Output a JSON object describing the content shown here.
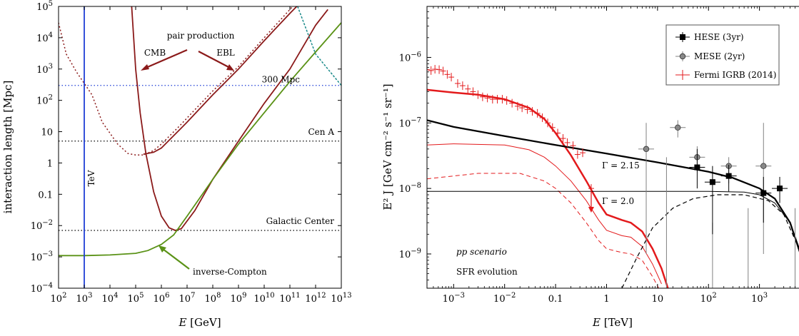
{
  "colors": {
    "pair": "#8b1a1a",
    "ic": "#5a9216",
    "tev": "#1f3fd6",
    "teal": "#1a8a8a",
    "fermi": "#e31a1c",
    "black": "#000000",
    "grey": "#808080"
  },
  "chart_data": [
    {
      "type": "line",
      "xlabel_sym": "E",
      "xlabel_unit": "[GeV]",
      "ylabel": "interaction length [Mpc]",
      "x_scale": "log",
      "y_scale": "log",
      "xlim": [
        100,
        10000000000000.0
      ],
      "ylim": [
        0.0001,
        100000
      ],
      "x_ticks": [
        {
          "v": 100,
          "m": "10",
          "e": "2"
        },
        {
          "v": 1000,
          "m": "10",
          "e": "3"
        },
        {
          "v": 10000,
          "m": "10",
          "e": "4"
        },
        {
          "v": 100000,
          "m": "10",
          "e": "5"
        },
        {
          "v": 1000000,
          "m": "10",
          "e": "6"
        },
        {
          "v": 10000000,
          "m": "10",
          "e": "7"
        },
        {
          "v": 100000000,
          "m": "10",
          "e": "8"
        },
        {
          "v": 1000000000,
          "m": "10",
          "e": "9"
        },
        {
          "v": 10000000000.0,
          "m": "10",
          "e": "10"
        },
        {
          "v": 100000000000.0,
          "m": "10",
          "e": "11"
        },
        {
          "v": 1000000000000.0,
          "m": "10",
          "e": "12"
        },
        {
          "v": 10000000000000.0,
          "m": "10",
          "e": "13"
        }
      ],
      "y_ticks": [
        {
          "v": 0.0001,
          "m": "10",
          "e": "−4"
        },
        {
          "v": 0.001,
          "m": "10",
          "e": "−3"
        },
        {
          "v": 0.01,
          "m": "10",
          "e": "−2"
        },
        {
          "v": 0.1,
          "m": "0.1",
          "e": ""
        },
        {
          "v": 1,
          "m": "1",
          "e": ""
        },
        {
          "v": 10,
          "m": "10",
          "e": ""
        },
        {
          "v": 100,
          "m": "10",
          "e": "2"
        },
        {
          "v": 1000,
          "m": "10",
          "e": "3"
        },
        {
          "v": 10000,
          "m": "10",
          "e": "4"
        },
        {
          "v": 100000,
          "m": "10",
          "e": "5"
        }
      ],
      "hlines": [
        {
          "label": "300 Mpc",
          "y": 300,
          "color": "#1f3fd6"
        },
        {
          "label": "Cen A",
          "y": 5,
          "color": "#000000"
        },
        {
          "label": "Galactic Center",
          "y": 0.007,
          "color": "#000000"
        }
      ],
      "vline": {
        "label": "TeV",
        "x": 1000
      },
      "annotations": {
        "pair": "pair production",
        "cmb": "CMB",
        "ebl": "EBL",
        "ic": "inverse-Compton"
      },
      "series": [
        {
          "key": "pair_cmb",
          "style": "solid",
          "color": "#8b1a1a",
          "points": [
            [
              70000,
              100000
            ],
            [
              100000,
              1000
            ],
            [
              150000,
              40
            ],
            [
              250000,
              2
            ],
            [
              500000,
              0.12
            ],
            [
              1000000,
              0.02
            ],
            [
              2000000,
              0.0085
            ],
            [
              3500000,
              0.007
            ],
            [
              6000000,
              0.008
            ],
            [
              20000000,
              0.03
            ],
            [
              100000000,
              0.3
            ],
            [
              1000000000,
              5
            ],
            [
              10000000000.0,
              80
            ],
            [
              100000000000.0,
              1000
            ],
            [
              1000000000000.0,
              25000
            ],
            [
              3000000000000.0,
              80000
            ]
          ]
        },
        {
          "key": "pair_ebl",
          "style": "dotted",
          "color": "#8b1a1a",
          "points": [
            [
              100,
              30000
            ],
            [
              200,
              3000
            ],
            [
              500,
              800
            ],
            [
              1000,
              350
            ],
            [
              2000,
              150
            ],
            [
              5000,
              20
            ],
            [
              20000,
              4
            ],
            [
              50000,
              2
            ],
            [
              100000,
              1.8
            ],
            [
              200000,
              1.8
            ],
            [
              500000,
              2.5
            ],
            [
              1000000,
              4
            ],
            [
              5000000,
              15
            ],
            [
              20000000,
              50
            ],
            [
              100000000,
              200
            ],
            [
              1000000000,
              1200
            ],
            [
              10000000000.0,
              10000
            ],
            [
              100000000000.0,
              80000
            ],
            [
              200000000000.0,
              150000
            ]
          ]
        },
        {
          "key": "pair_ebl_full",
          "style": "solid",
          "color": "#8b1a1a",
          "points": [
            [
              200000,
              1.9
            ],
            [
              500000,
              2.2
            ],
            [
              1000000,
              3
            ],
            [
              10000000,
              20
            ],
            [
              100000000,
              150
            ],
            [
              1000000000,
              1000
            ],
            [
              10000000000.0,
              8000
            ],
            [
              100000000000.0,
              60000
            ],
            [
              300000000000.0,
              150000
            ]
          ]
        },
        {
          "key": "ic",
          "style": "solid",
          "color": "#5a9216",
          "points": [
            [
              100,
              0.0011
            ],
            [
              1000,
              0.0011
            ],
            [
              10000,
              0.00115
            ],
            [
              100000,
              0.0013
            ],
            [
              300000,
              0.0016
            ],
            [
              1000000,
              0.0025
            ],
            [
              3000000,
              0.005
            ],
            [
              10000000,
              0.02
            ],
            [
              100000000,
              0.3
            ],
            [
              1000000000,
              4
            ],
            [
              10000000000.0,
              40
            ],
            [
              100000000000.0,
              400
            ],
            [
              1000000000000.0,
              3500
            ],
            [
              10000000000000.0,
              30000
            ]
          ]
        },
        {
          "key": "teal_dashed",
          "style": "dashdot",
          "color": "#1a8a8a",
          "points": [
            [
              200000000000.0,
              100000
            ],
            [
              1000000000000.0,
              3000
            ],
            [
              10000000000000.0,
              300
            ]
          ]
        }
      ]
    },
    {
      "type": "scatter",
      "xlabel_sym": "E",
      "xlabel_unit": "[TeV]",
      "ylabel": "E² J [GeV cm⁻² s⁻¹ sr⁻¹]",
      "x_scale": "log",
      "y_scale": "log",
      "xlim": [
        0.0003,
        10000
      ],
      "ylim": [
        3e-10,
        6e-06
      ],
      "x_ticks": [
        {
          "v": 0.001,
          "m": "10",
          "e": "−3"
        },
        {
          "v": 0.01,
          "m": "10",
          "e": "−2"
        },
        {
          "v": 0.1,
          "m": "0.1",
          "e": ""
        },
        {
          "v": 1,
          "m": "1",
          "e": ""
        },
        {
          "v": 10,
          "m": "10",
          "e": ""
        },
        {
          "v": 100,
          "m": "10",
          "e": "2"
        },
        {
          "v": 1000,
          "m": "10",
          "e": "3"
        }
      ],
      "y_ticks": [
        {
          "v": 1e-09,
          "m": "10",
          "e": "−9"
        },
        {
          "v": 1e-08,
          "m": "10",
          "e": "−8"
        },
        {
          "v": 1e-07,
          "m": "10",
          "e": "−7"
        },
        {
          "v": 1e-06,
          "m": "10",
          "e": "−6"
        }
      ],
      "legend": {
        "position": "top-right",
        "entries": [
          "HESE (3yr)",
          "MESE (2yr)",
          "Fermi IGRB (2014)"
        ]
      },
      "annotations": {
        "gamma1": "Γ = 2.15",
        "gamma2": "Γ = 2.0",
        "scenario1": "pp scenario",
        "scenario2": "SFR evolution"
      },
      "fermi_points": [
        [
          0.0003,
          6.5e-07
        ],
        [
          0.00036,
          6.3e-07
        ],
        [
          0.00043,
          6.6e-07
        ],
        [
          0.00052,
          6.5e-07
        ],
        [
          0.00062,
          6.2e-07
        ],
        [
          0.00075,
          5.5e-07
        ],
        [
          0.0009,
          5e-07
        ],
        [
          0.0012,
          4e-07
        ],
        [
          0.0015,
          3.7e-07
        ],
        [
          0.0019,
          3.3e-07
        ],
        [
          0.0024,
          3e-07
        ],
        [
          0.003,
          2.7e-07
        ],
        [
          0.0037,
          2.5e-07
        ],
        [
          0.0046,
          2.4e-07
        ],
        [
          0.0058,
          2.3e-07
        ],
        [
          0.0072,
          2.3e-07
        ],
        [
          0.009,
          2.3e-07
        ],
        [
          0.011,
          2.2e-07
        ],
        [
          0.014,
          2e-07
        ],
        [
          0.018,
          1.8e-07
        ],
        [
          0.022,
          1.7e-07
        ],
        [
          0.028,
          1.6e-07
        ],
        [
          0.035,
          1.5e-07
        ],
        [
          0.044,
          1.4e-07
        ],
        [
          0.055,
          1.2e-07
        ],
        [
          0.07,
          1e-07
        ],
        [
          0.087,
          8.5e-08
        ],
        [
          0.11,
          7e-08
        ],
        [
          0.14,
          5.8e-08
        ],
        [
          0.17,
          5e-08
        ],
        [
          0.22,
          4.5e-08
        ],
        [
          0.27,
          3.3e-08
        ],
        [
          0.34,
          3.5e-08
        ],
        [
          0.5,
          1e-08
        ]
      ],
      "fermi_upper_limit": [
        0.5,
        4.5e-09
      ],
      "hese_points": [
        [
          60,
          2.1e-08,
          1e-08,
          4e-08
        ],
        [
          120,
          1.25e-08,
          2e-09,
          2.2e-08
        ],
        [
          250,
          1.55e-08,
          9e-09,
          2.3e-08
        ],
        [
          1200,
          8.5e-09,
          3e-09,
          1.5e-08
        ],
        [
          2500,
          1e-08,
          6e-09,
          1.5e-08
        ]
      ],
      "mese_points": [
        [
          6,
          4e-08,
          1e-09,
          1e-07
        ],
        [
          25,
          8.5e-08,
          6e-08,
          1.1e-07
        ],
        [
          60,
          3e-08,
          1.8e-08,
          4.4e-08
        ],
        [
          250,
          2.2e-08,
          1.2e-08,
          3e-08
        ],
        [
          1200,
          2.2e-08,
          1e-09,
          1e-07
        ]
      ],
      "grey_upper_limits": [
        [
          15,
          3e-08
        ],
        [
          120,
          3e-09
        ],
        [
          600,
          5e-09
        ],
        [
          5000,
          5e-09
        ]
      ],
      "series": [
        {
          "key": "fermi_fit",
          "color": "#e31a1c",
          "width": 2.5,
          "style": "solid",
          "points": [
            [
              0.0003,
              3.2e-07
            ],
            [
              0.001,
              2.9e-07
            ],
            [
              0.003,
              2.7e-07
            ],
            [
              0.01,
              2.3e-07
            ],
            [
              0.03,
              1.7e-07
            ],
            [
              0.06,
              1.15e-07
            ],
            [
              0.1,
              7e-08
            ],
            [
              0.2,
              3.2e-08
            ],
            [
              0.4,
              1.3e-08
            ],
            [
              0.7,
              6e-09
            ],
            [
              1,
              4e-09
            ],
            [
              2,
              3.3e-09
            ],
            [
              3,
              3e-09
            ],
            [
              5,
              2.2e-09
            ],
            [
              8,
              1.2e-09
            ],
            [
              12,
              6e-10
            ],
            [
              16,
              3e-10
            ]
          ]
        },
        {
          "key": "pp_thin",
          "color": "#e31a1c",
          "width": 1,
          "style": "solid",
          "points": [
            [
              0.0003,
              4.6e-08
            ],
            [
              0.001,
              4.8e-08
            ],
            [
              0.01,
              4.6e-08
            ],
            [
              0.03,
              3.9e-08
            ],
            [
              0.06,
              3e-08
            ],
            [
              0.1,
              2.2e-08
            ],
            [
              0.2,
              1.3e-08
            ],
            [
              0.4,
              6.5e-09
            ],
            [
              0.7,
              3.3e-09
            ],
            [
              1,
              2.3e-09
            ],
            [
              2,
              1.9e-09
            ],
            [
              3,
              1.8e-09
            ],
            [
              5,
              1.3e-09
            ],
            [
              8,
              7e-10
            ],
            [
              12,
              3.5e-10
            ]
          ]
        },
        {
          "key": "pp_dashed",
          "color": "#e31a1c",
          "width": 1,
          "style": "dashed",
          "points": [
            [
              0.0003,
              1.4e-08
            ],
            [
              0.003,
              1.7e-08
            ],
            [
              0.02,
              1.7e-08
            ],
            [
              0.06,
              1.3e-08
            ],
            [
              0.1,
              1e-08
            ],
            [
              0.2,
              6e-09
            ],
            [
              0.4,
              3e-09
            ],
            [
              0.7,
              1.6e-09
            ],
            [
              1,
              1.2e-09
            ],
            [
              2,
              1.05e-09
            ],
            [
              3,
              1e-09
            ],
            [
              5,
              8e-10
            ],
            [
              8,
              4.5e-10
            ],
            [
              12,
              2.5e-10
            ]
          ]
        },
        {
          "key": "total_black",
          "color": "#000000",
          "width": 2.3,
          "style": "solid",
          "points": [
            [
              0.0003,
              1.1e-07
            ],
            [
              0.001,
              8.7e-08
            ],
            [
              0.01,
              6.3e-08
            ],
            [
              0.1,
              4.6e-08
            ],
            [
              1,
              3.4e-08
            ],
            [
              10,
              2.5e-08
            ],
            [
              100,
              1.8e-08
            ],
            [
              300,
              1.45e-08
            ],
            [
              1000,
              1e-08
            ],
            [
              2000,
              7e-09
            ],
            [
              4000,
              3e-09
            ],
            [
              7000,
              8e-10
            ],
            [
              10000,
              3e-10
            ]
          ]
        },
        {
          "key": "gamma2_thin",
          "color": "#000000",
          "width": 1,
          "style": "solid",
          "points": [
            [
              0.0003,
              9e-09
            ],
            [
              1,
              9e-09
            ],
            [
              100,
              9e-09
            ],
            [
              500,
              8.8e-09
            ],
            [
              1000,
              8e-09
            ],
            [
              2000,
              6e-09
            ],
            [
              4000,
              3e-09
            ],
            [
              7000,
              9e-10
            ],
            [
              10000,
              3e-10
            ]
          ]
        },
        {
          "key": "black_dashed",
          "color": "#000000",
          "width": 1.2,
          "style": "dashed",
          "points": [
            [
              2,
              3e-10
            ],
            [
              4,
              9e-10
            ],
            [
              8,
              2.5e-09
            ],
            [
              20,
              5e-09
            ],
            [
              50,
              7e-09
            ],
            [
              150,
              8e-09
            ],
            [
              500,
              8e-09
            ],
            [
              1500,
              6.5e-09
            ],
            [
              3000,
              4e-09
            ],
            [
              6000,
              1.2e-09
            ],
            [
              9000,
              4e-10
            ]
          ]
        }
      ]
    }
  ]
}
